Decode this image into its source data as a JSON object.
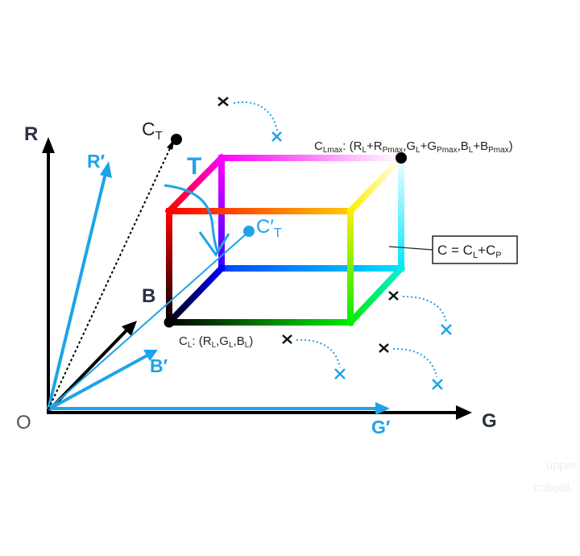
{
  "labels": {
    "axis_r": "R",
    "axis_g": "G",
    "axis_b": "B",
    "axis_r_prime": "R′",
    "axis_g_prime": "G′",
    "axis_b_prime": "B′",
    "origin": "O",
    "target_point_main": "C",
    "target_point_sub": "T",
    "target_prime_main": "C′",
    "target_prime_sub": "T",
    "target_t": "T",
    "cl_label": {
      "c": "C",
      "c_sub": "L",
      "text1": ": (R",
      "r_sub": "L",
      "comma1": ",G",
      "g_sub": "L",
      "comma2": ",B",
      "b_sub": "L",
      "close": ")"
    },
    "clmax_label": {
      "c": "C",
      "c_sub": "Lmax",
      "t1": ": (R",
      "s1": "L",
      "t2": "+R",
      "s2": "Pmax",
      "t3": ",G",
      "s3": "L",
      "t4": "+G",
      "s4": "Pmax",
      "t5": ",B",
      "s5": "L",
      "t6": "+B",
      "s6": "Pmax",
      "close": ")"
    },
    "equation_box": {
      "t1": "C = C",
      "s1": "L",
      "t2": "+C",
      "s2": "P"
    },
    "faint_text_1": "upper",
    "faint_text_2": "cuboid."
  },
  "colors": {
    "axis_black": "#000000",
    "axis_blue": "#1fa3e8",
    "box_red": "#ff0000",
    "box_magenta": "#ff00ff",
    "box_cyan": "#00e5ff",
    "box_green": "#00ee00",
    "box_yellow": "#ffff00",
    "box_blue": "#0000ff",
    "box_black": "#000000",
    "box_white": "#ffffff"
  }
}
